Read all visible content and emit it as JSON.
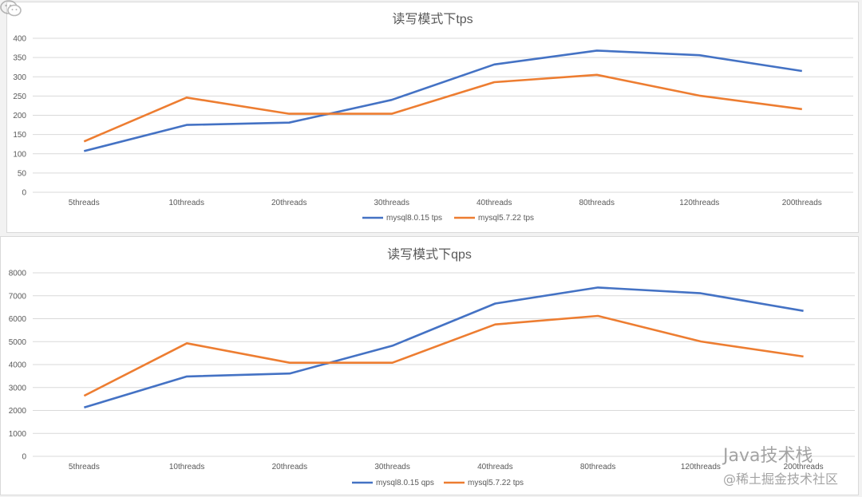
{
  "chart_data": [
    {
      "id": "tps",
      "type": "line",
      "title": "读写模式下tps",
      "categories": [
        "5threads",
        "10threads",
        "20threads",
        "30threads",
        "40threads",
        "80threads",
        "120threads",
        "200threads"
      ],
      "ylim": [
        0,
        400
      ],
      "yticks": [
        0,
        50,
        100,
        150,
        200,
        250,
        300,
        350,
        400
      ],
      "grid": true,
      "legend_position": "bottom",
      "series": [
        {
          "name": "mysql8.0.15 tps",
          "color": "#4472c4",
          "values": [
            107,
            175,
            181,
            240,
            332,
            368,
            356,
            315
          ]
        },
        {
          "name": "mysql5.7.22 tps",
          "color": "#ed7d31",
          "values": [
            132,
            246,
            204,
            204,
            286,
            305,
            251,
            216
          ]
        }
      ]
    },
    {
      "id": "qps",
      "type": "line",
      "title": "读写模式下qps",
      "categories": [
        "5threads",
        "10threads",
        "20threads",
        "30threads",
        "40threads",
        "80threads",
        "120threads",
        "200threads"
      ],
      "ylim": [
        0,
        8000
      ],
      "yticks": [
        0,
        1000,
        2000,
        3000,
        4000,
        5000,
        6000,
        7000,
        8000
      ],
      "grid": true,
      "legend_position": "bottom",
      "series": [
        {
          "name": "mysql8.0.15 qps",
          "color": "#4472c4",
          "values": [
            2130,
            3480,
            3610,
            4820,
            6660,
            7360,
            7110,
            6340
          ]
        },
        {
          "name": "mysql5.7.22 tps",
          "color": "#ed7d31",
          "values": [
            2640,
            4930,
            4080,
            4080,
            5750,
            6120,
            5010,
            4350
          ]
        }
      ]
    }
  ],
  "watermark": {
    "line1": "Java技术栈",
    "line2": "@稀土掘金技术社区",
    "icon": "wechat-icon"
  }
}
